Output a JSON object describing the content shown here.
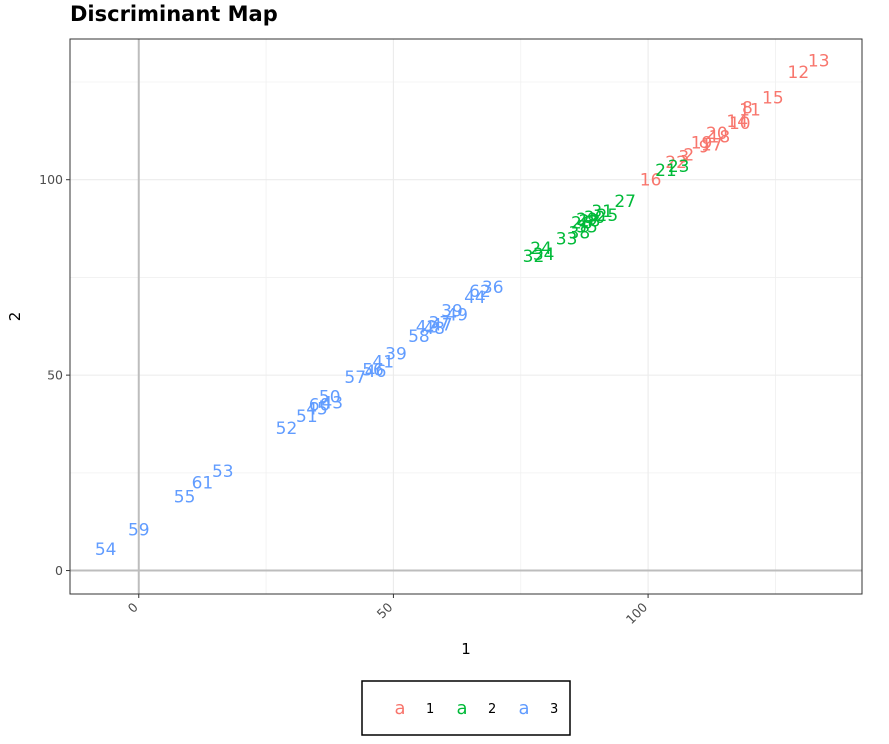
{
  "chart_data": {
    "type": "scatter",
    "title": "Discriminant Map",
    "xlabel": "1",
    "ylabel": "2",
    "xlim": [
      -13.5,
      142
    ],
    "ylim": [
      -6,
      136
    ],
    "x_ticks": [
      0,
      50,
      100
    ],
    "x_tick_labels": [
      "0",
      "50",
      "100"
    ],
    "y_ticks": [
      0,
      50,
      100
    ],
    "y_tick_labels": [
      "0",
      "50",
      "100"
    ],
    "grid": true,
    "reference_lines": {
      "x": 0,
      "y": 0
    },
    "legend": {
      "placement": "bottom",
      "key_glyph": "a",
      "entries": [
        {
          "label": "1",
          "color": "#F8766D"
        },
        {
          "label": "2",
          "color": "#00BA38"
        },
        {
          "label": "3",
          "color": "#619CFF"
        }
      ]
    },
    "series": [
      {
        "group": "1",
        "color": "#F8766D",
        "points": [
          {
            "label": "13",
            "x": 133.5,
            "y": 130.5
          },
          {
            "label": "12",
            "x": 129.5,
            "y": 127.5
          },
          {
            "label": "15",
            "x": 124.5,
            "y": 121.0
          },
          {
            "label": "11",
            "x": 120.0,
            "y": 118.0
          },
          {
            "label": "8",
            "x": 119.5,
            "y": 118.5
          },
          {
            "label": "14",
            "x": 117.5,
            "y": 115.0
          },
          {
            "label": "10",
            "x": 118.0,
            "y": 114.5
          },
          {
            "label": "20",
            "x": 113.5,
            "y": 112.0
          },
          {
            "label": "18",
            "x": 114.0,
            "y": 111.0
          },
          {
            "label": "19",
            "x": 110.5,
            "y": 109.5
          },
          {
            "label": "9",
            "x": 111.0,
            "y": 108.5
          },
          {
            "label": "17",
            "x": 112.5,
            "y": 109.0
          },
          {
            "label": "3",
            "x": 107.0,
            "y": 106.0
          },
          {
            "label": "2",
            "x": 108.0,
            "y": 106.5
          },
          {
            "label": "16",
            "x": 100.5,
            "y": 100.0
          },
          {
            "label": "22",
            "x": 105.5,
            "y": 104.5
          }
        ]
      },
      {
        "group": "2",
        "color": "#00BA38",
        "points": [
          {
            "label": "21",
            "x": 103.5,
            "y": 102.5
          },
          {
            "label": "23",
            "x": 106.0,
            "y": 103.5
          },
          {
            "label": "27",
            "x": 95.5,
            "y": 94.5
          },
          {
            "label": "25",
            "x": 92.0,
            "y": 91.0
          },
          {
            "label": "31",
            "x": 91.0,
            "y": 92.0
          },
          {
            "label": "30",
            "x": 89.5,
            "y": 90.5
          },
          {
            "label": "29",
            "x": 88.0,
            "y": 90.0
          },
          {
            "label": "26",
            "x": 87.0,
            "y": 89.0
          },
          {
            "label": "28",
            "x": 88.5,
            "y": 89.5
          },
          {
            "label": "35",
            "x": 88.0,
            "y": 88.0
          },
          {
            "label": "38",
            "x": 86.5,
            "y": 86.5
          },
          {
            "label": "33",
            "x": 84.0,
            "y": 85.0
          },
          {
            "label": "24",
            "x": 79.0,
            "y": 82.5
          },
          {
            "label": "34",
            "x": 79.5,
            "y": 81.0
          },
          {
            "label": "32",
            "x": 77.5,
            "y": 80.5
          }
        ]
      },
      {
        "group": "3",
        "color": "#619CFF",
        "points": [
          {
            "label": "36",
            "x": 69.5,
            "y": 72.5
          },
          {
            "label": "62",
            "x": 67.0,
            "y": 71.5
          },
          {
            "label": "44",
            "x": 66.0,
            "y": 70.0
          },
          {
            "label": "49",
            "x": 62.5,
            "y": 65.5
          },
          {
            "label": "39",
            "x": 61.5,
            "y": 66.5
          },
          {
            "label": "47",
            "x": 59.5,
            "y": 63.0
          },
          {
            "label": "37",
            "x": 59.0,
            "y": 63.5
          },
          {
            "label": "48",
            "x": 58.0,
            "y": 62.0
          },
          {
            "label": "42",
            "x": 56.5,
            "y": 62.5
          },
          {
            "label": "58",
            "x": 55.0,
            "y": 60.0
          },
          {
            "label": "39",
            "x": 50.5,
            "y": 55.5
          },
          {
            "label": "41",
            "x": 48.0,
            "y": 53.5
          },
          {
            "label": "56",
            "x": 46.0,
            "y": 51.5
          },
          {
            "label": "46",
            "x": 46.5,
            "y": 51.0
          },
          {
            "label": "57",
            "x": 42.5,
            "y": 49.5
          },
          {
            "label": "50",
            "x": 37.5,
            "y": 44.5
          },
          {
            "label": "43",
            "x": 38.0,
            "y": 43.0
          },
          {
            "label": "60",
            "x": 35.5,
            "y": 42.5
          },
          {
            "label": "45",
            "x": 35.0,
            "y": 41.5
          },
          {
            "label": "51",
            "x": 33.0,
            "y": 39.5
          },
          {
            "label": "52",
            "x": 29.0,
            "y": 36.5
          },
          {
            "label": "53",
            "x": 16.5,
            "y": 25.5
          },
          {
            "label": "61",
            "x": 12.5,
            "y": 22.5
          },
          {
            "label": "55",
            "x": 9.0,
            "y": 19.0
          },
          {
            "label": "59",
            "x": 0.0,
            "y": 10.5
          },
          {
            "label": "54",
            "x": -6.5,
            "y": 5.5
          }
        ]
      }
    ]
  }
}
